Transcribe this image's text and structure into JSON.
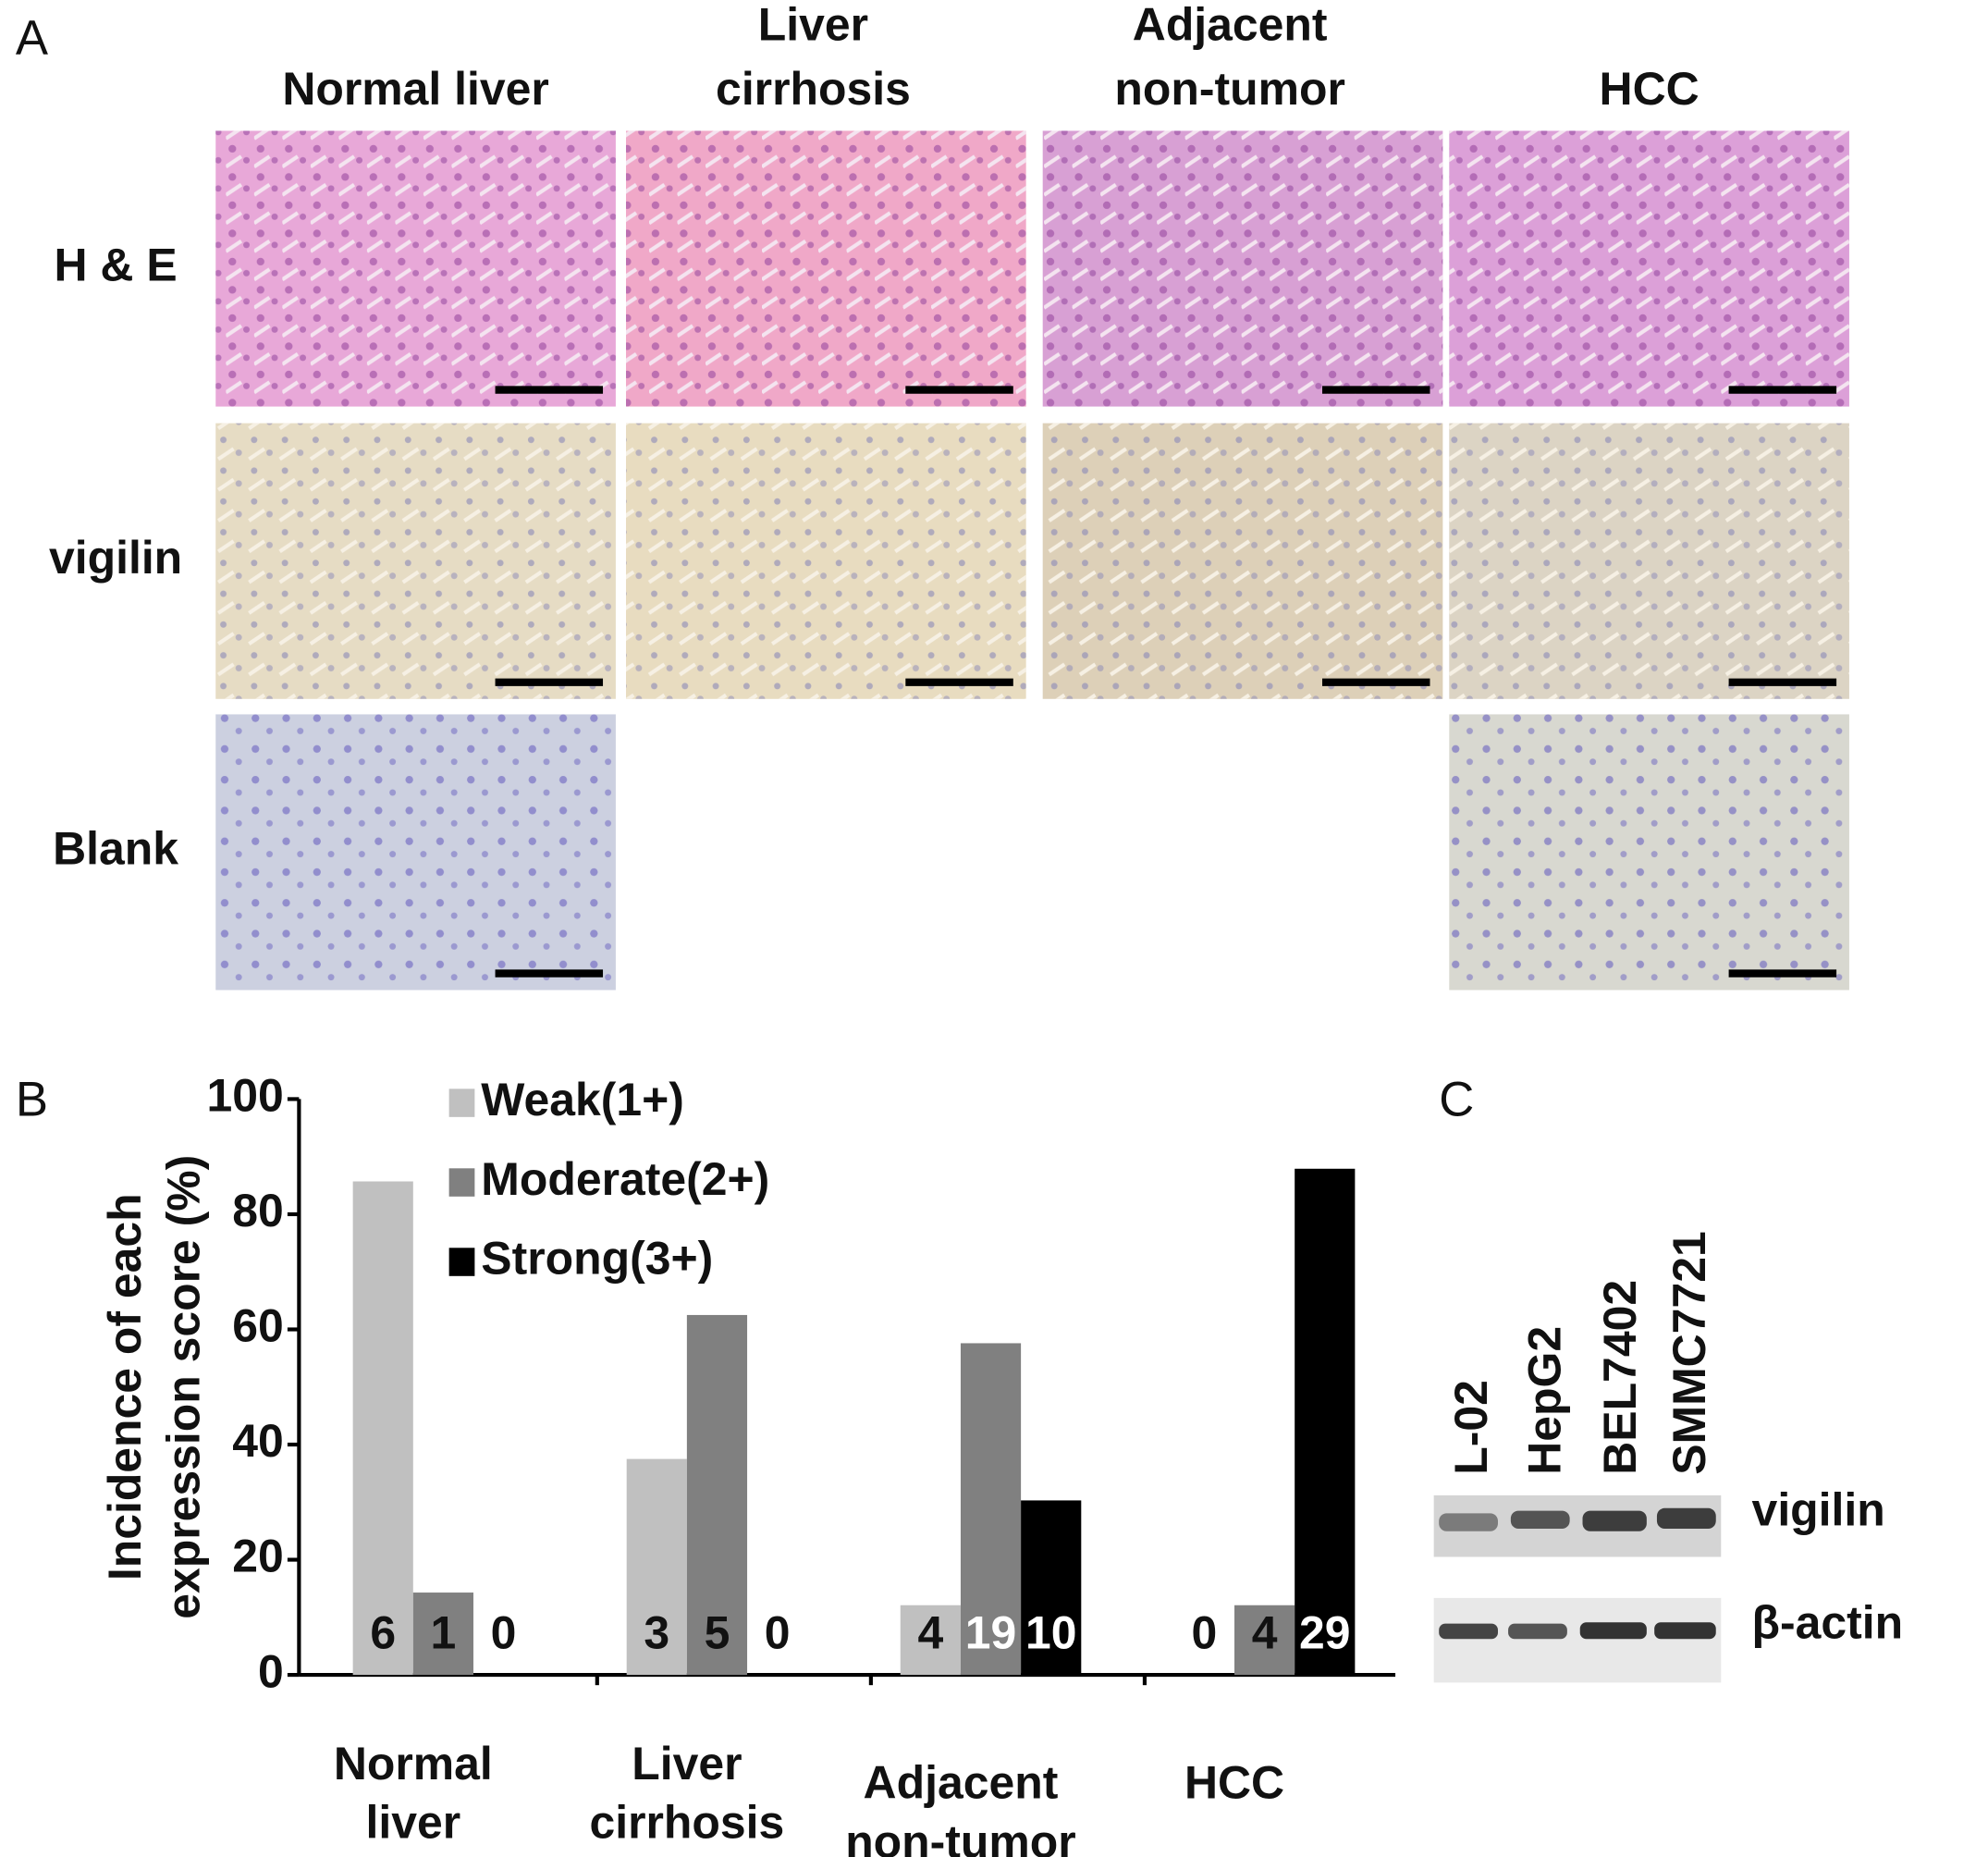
{
  "panel_a": {
    "letter": "A",
    "columns": [
      "Normal liver",
      "Liver cirrhosis",
      "Adjacent non-tumor",
      "HCC"
    ],
    "rows": [
      "H & E",
      "vigilin",
      "Blank"
    ]
  },
  "chart_data": {
    "letter": "B",
    "type": "bar",
    "ylabel": [
      "Incidence of each",
      "expression score (%)"
    ],
    "categories": [
      "Normal liver",
      "Liver cirrhosis",
      "Adjacent non-tumor",
      "HCC"
    ],
    "series": [
      {
        "name": "Weak(1+)",
        "color": "#c0c0c0",
        "values": [
          85.7,
          37.5,
          12.1,
          0
        ],
        "counts": [
          6,
          3,
          4,
          0
        ]
      },
      {
        "name": "Moderate(2+)",
        "color": "#808080",
        "values": [
          14.3,
          62.5,
          57.6,
          12.1
        ],
        "counts": [
          1,
          5,
          19,
          4
        ]
      },
      {
        "name": "Strong(3+)",
        "color": "#000000",
        "values": [
          0,
          0,
          30.3,
          87.9
        ],
        "counts": [
          0,
          0,
          10,
          29
        ]
      }
    ],
    "ylim": [
      0,
      100
    ],
    "yticks": [
      0,
      20,
      40,
      60,
      80,
      100
    ],
    "legend": "upper left"
  },
  "panel_c": {
    "letter": "C",
    "lanes": [
      "L-02",
      "HepG2",
      "BEL7402",
      "SMMC7721"
    ],
    "bands": [
      "vigilin",
      "β-actin"
    ]
  }
}
